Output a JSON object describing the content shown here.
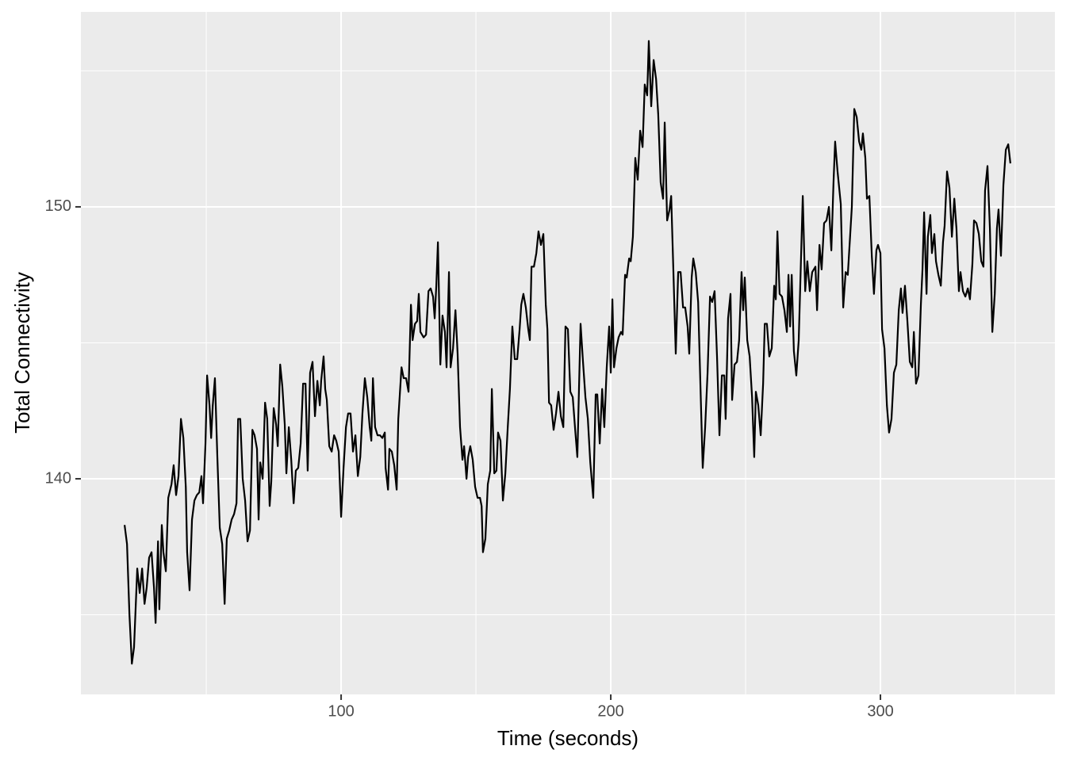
{
  "chart_data": {
    "type": "line",
    "xlabel": "Time (seconds)",
    "ylabel": "Total Connectivity",
    "color": "#000000",
    "panel_color": "#ebebeb",
    "grid": true,
    "xlim": [
      3.5,
      364.7
    ],
    "ylim": [
      132.07,
      157.17
    ],
    "xticks": [
      100,
      200,
      300
    ],
    "yticks": [
      140,
      150
    ],
    "xminor": [
      50,
      150,
      250,
      350
    ],
    "yminor": [
      135,
      145,
      155
    ],
    "x": [
      19.7,
      20.6,
      21.5,
      22.4,
      23.2,
      24.4,
      25.3,
      26.2,
      27.1,
      27.9,
      28.8,
      29.7,
      30.6,
      31.2,
      32.1,
      32.6,
      33.5,
      34.1,
      35.0,
      35.9,
      37.1,
      37.9,
      38.8,
      39.7,
      40.6,
      41.5,
      42.4,
      42.9,
      43.8,
      44.7,
      45.6,
      46.5,
      47.4,
      48.2,
      48.8,
      49.7,
      50.3,
      51.2,
      51.8,
      52.4,
      53.2,
      54.1,
      55.0,
      55.9,
      56.8,
      57.6,
      58.5,
      59.4,
      60.3,
      61.2,
      61.8,
      62.6,
      63.5,
      64.4,
      65.3,
      66.2,
      67.1,
      67.9,
      68.8,
      69.4,
      70.0,
      70.9,
      71.8,
      72.6,
      73.5,
      74.1,
      75.0,
      75.9,
      76.5,
      77.4,
      78.2,
      79.1,
      79.7,
      80.6,
      81.5,
      82.4,
      83.2,
      84.1,
      85.0,
      85.9,
      86.8,
      87.6,
      88.5,
      89.4,
      90.3,
      91.2,
      92.1,
      92.6,
      93.5,
      94.1,
      94.7,
      95.6,
      96.5,
      97.4,
      98.2,
      99.1,
      100.0,
      100.9,
      101.8,
      102.6,
      103.5,
      104.4,
      105.3,
      106.2,
      107.1,
      107.9,
      108.8,
      109.7,
      110.6,
      111.2,
      111.8,
      112.6,
      113.5,
      114.4,
      115.3,
      116.2,
      116.5,
      117.4,
      117.9,
      118.8,
      119.7,
      120.6,
      121.2,
      122.4,
      123.2,
      124.1,
      125.0,
      125.9,
      126.5,
      127.4,
      128.2,
      128.8,
      129.4,
      130.6,
      131.5,
      132.4,
      133.2,
      134.1,
      134.7,
      135.3,
      135.9,
      136.8,
      137.6,
      138.5,
      139.1,
      140.0,
      140.6,
      141.5,
      142.4,
      143.2,
      144.1,
      145.0,
      145.6,
      146.5,
      147.1,
      147.9,
      148.8,
      149.7,
      150.6,
      151.5,
      152.1,
      152.6,
      153.5,
      154.4,
      155.3,
      155.9,
      156.8,
      157.6,
      158.2,
      159.1,
      160.0,
      160.9,
      161.8,
      162.6,
      163.5,
      164.4,
      165.3,
      166.2,
      166.8,
      167.6,
      168.5,
      169.4,
      170.0,
      170.6,
      171.5,
      172.4,
      173.2,
      174.1,
      175.0,
      175.9,
      176.5,
      177.1,
      177.9,
      178.8,
      179.7,
      180.6,
      181.5,
      182.4,
      183.2,
      184.1,
      185.0,
      185.9,
      186.8,
      187.6,
      188.8,
      189.7,
      190.6,
      191.5,
      192.4,
      193.5,
      194.4,
      195.0,
      195.9,
      196.8,
      197.6,
      198.5,
      199.4,
      200.0,
      200.6,
      201.2,
      202.1,
      202.9,
      203.8,
      204.4,
      205.3,
      205.9,
      206.8,
      207.4,
      208.2,
      209.1,
      210.0,
      210.9,
      211.8,
      212.6,
      213.5,
      214.1,
      215.0,
      215.9,
      216.8,
      217.6,
      218.5,
      219.4,
      220.0,
      220.9,
      221.8,
      222.4,
      223.2,
      224.1,
      225.0,
      225.9,
      226.8,
      227.6,
      228.5,
      229.1,
      230.0,
      230.6,
      231.5,
      232.4,
      233.2,
      234.1,
      235.0,
      235.9,
      236.8,
      237.6,
      238.5,
      239.4,
      240.3,
      241.2,
      242.1,
      242.6,
      243.5,
      244.4,
      245.0,
      245.9,
      246.8,
      247.6,
      248.5,
      249.1,
      249.7,
      250.6,
      251.5,
      252.4,
      253.2,
      253.8,
      254.7,
      255.6,
      256.5,
      257.1,
      257.9,
      258.8,
      259.7,
      260.6,
      261.2,
      261.8,
      262.6,
      263.5,
      264.4,
      265.3,
      265.9,
      266.5,
      267.1,
      267.9,
      268.8,
      269.7,
      271.2,
      272.1,
      272.9,
      273.8,
      274.7,
      275.9,
      276.5,
      277.4,
      278.2,
      279.1,
      280.0,
      280.9,
      281.8,
      282.6,
      283.2,
      284.1,
      285.3,
      286.2,
      287.1,
      287.9,
      288.8,
      289.4,
      290.3,
      291.2,
      292.1,
      292.9,
      293.5,
      294.4,
      295.0,
      295.9,
      296.8,
      297.6,
      298.5,
      299.1,
      300.0,
      300.6,
      301.5,
      302.4,
      303.2,
      304.1,
      305.0,
      305.9,
      306.8,
      307.6,
      308.2,
      309.1,
      310.0,
      310.9,
      311.8,
      312.4,
      313.2,
      314.1,
      315.0,
      315.6,
      316.2,
      317.1,
      317.6,
      318.5,
      319.1,
      320.0,
      320.6,
      321.5,
      322.4,
      323.2,
      323.8,
      324.7,
      325.6,
      326.5,
      327.4,
      328.2,
      329.1,
      329.7,
      330.6,
      331.5,
      332.4,
      333.2,
      334.1,
      334.7,
      335.6,
      336.5,
      337.4,
      338.2,
      338.8,
      339.7,
      340.6,
      341.5,
      342.4,
      343.2,
      343.8,
      344.7,
      345.6,
      346.5,
      347.4,
      348.2
    ],
    "values": [
      138.3,
      137.6,
      135.0,
      133.2,
      133.8,
      136.7,
      135.8,
      136.7,
      135.4,
      136.0,
      137.1,
      137.3,
      136.0,
      134.7,
      137.7,
      135.2,
      138.3,
      137.3,
      136.6,
      139.3,
      139.8,
      140.5,
      139.4,
      140.1,
      142.2,
      141.5,
      139.7,
      137.3,
      135.9,
      138.5,
      139.2,
      139.4,
      139.5,
      140.1,
      139.1,
      141.3,
      143.8,
      142.7,
      141.5,
      142.7,
      143.7,
      140.8,
      138.2,
      137.6,
      135.4,
      137.8,
      138.1,
      138.5,
      138.7,
      139.1,
      142.2,
      142.2,
      140.0,
      139.2,
      137.7,
      138.1,
      141.8,
      141.6,
      141.1,
      138.5,
      140.6,
      140.0,
      142.8,
      142.2,
      139.0,
      139.9,
      142.6,
      142.0,
      141.2,
      144.2,
      143.4,
      142.0,
      140.2,
      141.9,
      140.7,
      139.1,
      140.3,
      140.4,
      141.3,
      143.5,
      143.5,
      140.3,
      143.9,
      144.3,
      142.3,
      143.6,
      142.7,
      143.6,
      144.5,
      143.3,
      142.9,
      141.2,
      141.0,
      141.6,
      141.4,
      141.0,
      138.6,
      140.4,
      141.9,
      142.4,
      142.4,
      141.0,
      141.6,
      140.1,
      140.8,
      142.4,
      143.7,
      143.0,
      141.9,
      141.4,
      143.7,
      141.9,
      141.6,
      141.6,
      141.5,
      141.7,
      140.4,
      139.6,
      141.1,
      141.0,
      140.5,
      139.6,
      142.2,
      144.1,
      143.7,
      143.7,
      143.2,
      146.4,
      145.1,
      145.7,
      145.8,
      146.8,
      145.4,
      145.2,
      145.3,
      146.9,
      147.0,
      146.7,
      145.9,
      147.1,
      148.7,
      144.2,
      146.0,
      145.4,
      144.1,
      147.6,
      144.1,
      144.8,
      146.2,
      144.6,
      141.9,
      140.7,
      141.2,
      140.0,
      140.8,
      141.2,
      140.7,
      139.7,
      139.3,
      139.3,
      139.0,
      137.3,
      137.8,
      139.8,
      140.3,
      143.3,
      140.2,
      140.3,
      141.7,
      141.4,
      139.2,
      140.2,
      141.9,
      143.3,
      145.6,
      144.4,
      144.4,
      145.5,
      146.4,
      146.8,
      146.3,
      145.5,
      145.1,
      147.8,
      147.8,
      148.3,
      149.1,
      148.6,
      149.0,
      146.4,
      145.5,
      142.8,
      142.7,
      141.8,
      142.4,
      143.2,
      142.3,
      141.9,
      145.6,
      145.5,
      143.2,
      143.0,
      141.8,
      140.8,
      145.7,
      144.3,
      143.0,
      142.2,
      140.6,
      139.3,
      143.1,
      143.1,
      141.3,
      143.3,
      141.9,
      144.1,
      145.6,
      143.9,
      146.6,
      144.1,
      144.8,
      145.2,
      145.4,
      145.3,
      147.5,
      147.4,
      148.1,
      148.0,
      148.9,
      151.8,
      151.0,
      152.8,
      152.2,
      154.5,
      154.1,
      156.1,
      153.7,
      155.4,
      154.7,
      153.4,
      150.9,
      150.3,
      153.1,
      149.5,
      149.9,
      150.4,
      147.7,
      144.6,
      147.6,
      147.6,
      146.3,
      146.3,
      145.6,
      144.6,
      147.4,
      148.1,
      147.6,
      146.5,
      143.6,
      140.4,
      141.9,
      143.9,
      146.7,
      146.5,
      146.9,
      144.5,
      141.6,
      143.8,
      143.8,
      142.2,
      145.9,
      146.8,
      142.9,
      144.2,
      144.3,
      145.1,
      147.6,
      146.2,
      147.4,
      145.1,
      144.5,
      143.0,
      140.8,
      143.2,
      142.7,
      141.6,
      143.5,
      145.7,
      145.7,
      144.5,
      144.8,
      147.1,
      146.6,
      149.1,
      146.8,
      146.7,
      146.2,
      145.4,
      147.5,
      145.6,
      147.5,
      144.7,
      143.8,
      145.1,
      150.4,
      146.9,
      148.0,
      146.9,
      147.6,
      147.8,
      146.2,
      148.6,
      147.7,
      149.4,
      149.5,
      150.0,
      148.4,
      150.9,
      152.4,
      151.3,
      150.1,
      146.3,
      147.6,
      147.5,
      149.0,
      150.0,
      153.6,
      153.3,
      152.4,
      152.1,
      152.7,
      151.8,
      150.3,
      150.4,
      148.2,
      146.8,
      148.4,
      148.6,
      148.3,
      145.5,
      144.8,
      142.7,
      141.7,
      142.2,
      143.9,
      144.2,
      146.2,
      147.0,
      146.1,
      147.1,
      145.8,
      144.3,
      144.1,
      145.4,
      143.5,
      143.8,
      146.4,
      147.7,
      149.8,
      146.8,
      148.9,
      149.7,
      148.3,
      149.0,
      148.0,
      147.5,
      147.1,
      148.7,
      149.3,
      151.3,
      150.7,
      148.9,
      150.3,
      149.2,
      146.9,
      147.6,
      146.9,
      146.7,
      147.0,
      146.6,
      147.9,
      149.5,
      149.4,
      149.0,
      148.0,
      147.8,
      150.6,
      151.5,
      149.2,
      145.4,
      146.8,
      149.2,
      149.9,
      148.2,
      150.8,
      152.1,
      152.3,
      151.6
    ]
  }
}
